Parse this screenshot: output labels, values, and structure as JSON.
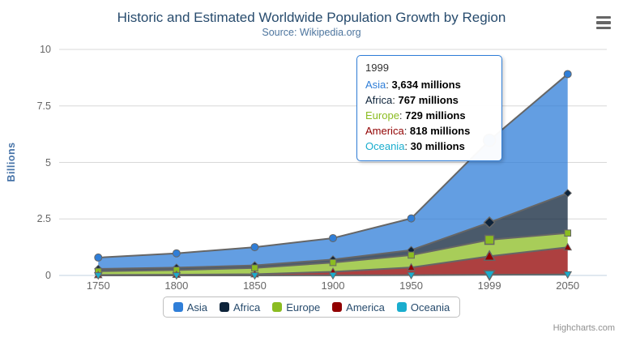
{
  "chart_data": {
    "type": "area",
    "stacking": "normal",
    "title": "Historic and Estimated Worldwide Population Growth by Region",
    "subtitle": "Source: Wikipedia.org",
    "xlabel": "",
    "ylabel": "Billions",
    "ylim": [
      0,
      10
    ],
    "yticks": [
      0,
      2.5,
      5,
      7.5,
      10
    ],
    "ytick_labels": [
      "0",
      "2.5",
      "5",
      "7.5",
      "10"
    ],
    "categories": [
      "1750",
      "1800",
      "1850",
      "1900",
      "1950",
      "1999",
      "2050"
    ],
    "values_unit": "millions",
    "grid": true,
    "legend_position": "bottom",
    "line_color": "#666666",
    "grid_color": "#D8D8D8",
    "axis_line_color": "#C0D0E0",
    "fill_opacity": 0.75,
    "hover": {
      "category": "1999",
      "category_index": 5
    },
    "series": [
      {
        "name": "Asia",
        "color": "#2f7ed8",
        "marker": "circle",
        "values": [
          502,
          635,
          809,
          947,
          1402,
          3634,
          5268
        ]
      },
      {
        "name": "Africa",
        "color": "#0d233a",
        "marker": "diamond",
        "values": [
          106,
          107,
          111,
          133,
          221,
          767,
          1766
        ]
      },
      {
        "name": "Europe",
        "color": "#8bbc21",
        "marker": "square",
        "values": [
          163,
          203,
          276,
          408,
          547,
          729,
          628
        ]
      },
      {
        "name": "America",
        "color": "#910000",
        "marker": "triangle",
        "values": [
          18,
          31,
          54,
          156,
          339,
          818,
          1201
        ]
      },
      {
        "name": "Oceania",
        "color": "#1aadce",
        "marker": "triangle-down",
        "values": [
          2,
          2,
          2,
          6,
          13,
          30,
          46
        ]
      }
    ]
  },
  "tooltip": {
    "header": "1999",
    "separator": ": ",
    "rows": [
      {
        "name": "Asia",
        "value": "3,634 millions"
      },
      {
        "name": "Africa",
        "value": "767 millions"
      },
      {
        "name": "Europe",
        "value": "729 millions"
      },
      {
        "name": "America",
        "value": "818 millions"
      },
      {
        "name": "Oceania",
        "value": "30 millions"
      }
    ]
  },
  "credits": "Highcharts.com"
}
